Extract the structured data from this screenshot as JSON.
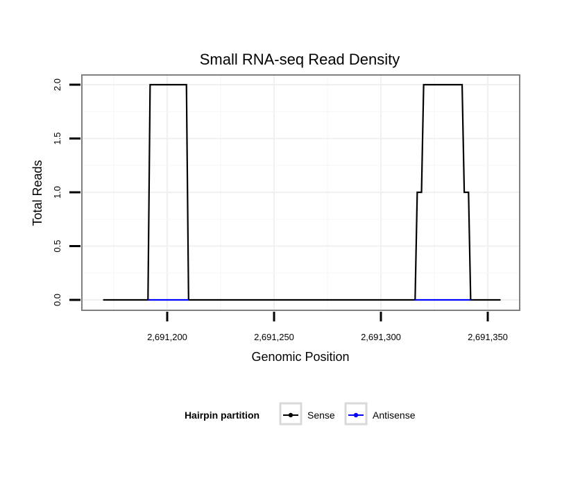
{
  "chart_data": {
    "type": "line",
    "title": "Small RNA-seq Read Density",
    "xlabel": "Genomic Position",
    "ylabel": "Total Reads",
    "xlim": [
      2691170,
      2691355
    ],
    "ylim": [
      0,
      2
    ],
    "x_ticks": [
      2691200,
      2691250,
      2691300,
      2691350
    ],
    "x_tick_labels": [
      "2,691,200",
      "2,691,250",
      "2,691,300",
      "2,691,350"
    ],
    "y_ticks": [
      0,
      0.5,
      1,
      1.5,
      2
    ],
    "y_tick_labels": [
      "0.0",
      "0.5",
      "1.0",
      "1.5",
      "2.0"
    ],
    "grid": true,
    "legend": {
      "title": "Hairpin partition",
      "position": "bottom",
      "entries": [
        {
          "label": "Sense",
          "color": "#000000"
        },
        {
          "label": "Antisense",
          "color": "#0000ff"
        }
      ]
    },
    "series": [
      {
        "name": "Sense",
        "color": "#000000",
        "points": [
          [
            2691170,
            0
          ],
          [
            2691191,
            0
          ],
          [
            2691192,
            2
          ],
          [
            2691209,
            2
          ],
          [
            2691210,
            0
          ],
          [
            2691316,
            0
          ],
          [
            2691317,
            1
          ],
          [
            2691319,
            1
          ],
          [
            2691320,
            2
          ],
          [
            2691338,
            2
          ],
          [
            2691339,
            1
          ],
          [
            2691341,
            1
          ],
          [
            2691342,
            0
          ],
          [
            2691356,
            0
          ]
        ]
      },
      {
        "name": "Antisense",
        "color": "#0000ff",
        "points": [
          [
            2691191,
            0
          ],
          [
            2691210,
            0
          ],
          [
            2691316,
            0
          ],
          [
            2691342,
            0
          ]
        ],
        "segments": [
          [
            0,
            1
          ],
          [
            2,
            3
          ]
        ]
      }
    ]
  }
}
